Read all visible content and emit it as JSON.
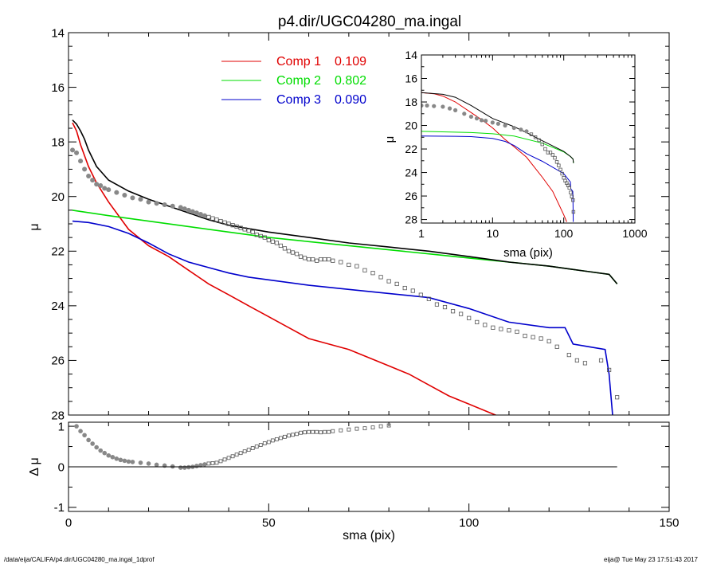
{
  "title": "p4.dir/UGC04280_ma.ingal",
  "footer": {
    "left": "/data/eija/CALIFA/p4.dir/UGC04280_ma.ingal_1dprof",
    "right": "eija@  Tue May 23 17:51:43 2017"
  },
  "colors": {
    "comp1": "#e00000",
    "comp2": "#00dd00",
    "comp3": "#0000cc",
    "total": "#000000",
    "data": "#888888"
  },
  "legend": [
    {
      "label": "Comp 1",
      "value": "0.109",
      "color": "#e00000"
    },
    {
      "label": "Comp 2",
      "value": "0.802",
      "color": "#00dd00"
    },
    {
      "label": "Comp 3",
      "value": "0.090",
      "color": "#0000cc"
    }
  ],
  "chart_data": [
    {
      "type": "line",
      "title": "p4.dir/UGC04280_ma.ingal",
      "xlabel": "",
      "ylabel": "μ",
      "xlim": [
        0,
        150
      ],
      "ylim": [
        28,
        14
      ],
      "y_inverted": true,
      "yticks": [
        "14",
        "16",
        "18",
        "20",
        "22",
        "24",
        "26",
        "28"
      ],
      "series": [
        {
          "name": "Comp 1 0.109",
          "color": "#e00000",
          "x": [
            1,
            2,
            3,
            5,
            7,
            10,
            15,
            20,
            25,
            30,
            35,
            40,
            45,
            50,
            55,
            60,
            65,
            70,
            75,
            80,
            85,
            90,
            95,
            100,
            105,
            110
          ],
          "y": [
            17.3,
            17.6,
            18.1,
            18.9,
            19.5,
            20.2,
            21.2,
            21.8,
            22.2,
            22.7,
            23.2,
            23.6,
            24.0,
            24.4,
            24.8,
            25.2,
            25.4,
            25.6,
            25.9,
            26.2,
            26.5,
            26.9,
            27.3,
            27.6,
            27.9,
            28.2
          ]
        },
        {
          "name": "Comp 2 0.802",
          "color": "#00dd00",
          "x": [
            1,
            10,
            20,
            30,
            40,
            50,
            60,
            70,
            80,
            90,
            100,
            110,
            120,
            125,
            130,
            135,
            137
          ],
          "y": [
            20.5,
            20.7,
            20.9,
            21.1,
            21.3,
            21.5,
            21.65,
            21.8,
            21.95,
            22.1,
            22.25,
            22.4,
            22.55,
            22.65,
            22.75,
            22.85,
            23.2
          ]
        },
        {
          "name": "Comp 3 0.090",
          "color": "#0000cc",
          "x": [
            1,
            5,
            10,
            15,
            20,
            25,
            30,
            35,
            40,
            45,
            50,
            60,
            70,
            80,
            90,
            100,
            110,
            120,
            124,
            126,
            130,
            134,
            135,
            136
          ],
          "y": [
            20.9,
            20.95,
            21.1,
            21.35,
            21.7,
            22.1,
            22.4,
            22.6,
            22.8,
            22.95,
            23.05,
            23.25,
            23.4,
            23.55,
            23.7,
            24.1,
            24.6,
            24.8,
            24.8,
            25.4,
            25.5,
            25.6,
            26.5,
            28.2
          ]
        },
        {
          "name": "",
          "color": "#000000",
          "x": [
            1,
            2,
            3,
            4,
            5,
            7,
            10,
            15,
            20,
            25,
            30,
            35,
            40,
            50,
            60,
            70,
            80,
            90,
            100,
            110,
            120,
            125,
            130,
            135,
            137
          ],
          "y": [
            17.2,
            17.35,
            17.6,
            17.9,
            18.3,
            18.9,
            19.4,
            19.8,
            20.1,
            20.35,
            20.6,
            20.85,
            21.05,
            21.3,
            21.5,
            21.7,
            21.85,
            22.0,
            22.2,
            22.4,
            22.55,
            22.65,
            22.75,
            22.85,
            23.2
          ]
        },
        {
          "name": "",
          "color": "#888888",
          "style": "points",
          "x": [
            1,
            2,
            3,
            4,
            5,
            6,
            7,
            8,
            9,
            10,
            12,
            14,
            16,
            18,
            20,
            22,
            24,
            26,
            28,
            29,
            30,
            31,
            32,
            33,
            34,
            35,
            36,
            37,
            38,
            39,
            40,
            41,
            42,
            43,
            44,
            45,
            46,
            47,
            48,
            49,
            50,
            51,
            52,
            53,
            54,
            55,
            56,
            57,
            58,
            59,
            60,
            61,
            62,
            63,
            64,
            65,
            66,
            68,
            70,
            72,
            74,
            76,
            78,
            80,
            82,
            84,
            86,
            88,
            90,
            92,
            94,
            96,
            98,
            100,
            102,
            104,
            106,
            108,
            110,
            112,
            114,
            116,
            118,
            120,
            122,
            125,
            127,
            129,
            133,
            135,
            137
          ],
          "y": [
            18.3,
            18.4,
            18.7,
            19.0,
            19.25,
            19.4,
            19.55,
            19.6,
            19.7,
            19.75,
            19.85,
            19.95,
            20.05,
            20.1,
            20.2,
            20.25,
            20.3,
            20.35,
            20.4,
            20.45,
            20.5,
            20.55,
            20.6,
            20.65,
            20.7,
            20.75,
            20.8,
            20.85,
            20.9,
            20.95,
            21.0,
            21.05,
            21.1,
            21.15,
            21.2,
            21.25,
            21.3,
            21.4,
            21.45,
            21.5,
            21.6,
            21.65,
            21.7,
            21.8,
            21.9,
            22.0,
            22.05,
            22.1,
            22.2,
            22.25,
            22.3,
            22.3,
            22.35,
            22.3,
            22.3,
            22.3,
            22.35,
            22.4,
            22.5,
            22.55,
            22.7,
            22.8,
            22.95,
            23.1,
            23.2,
            23.35,
            23.45,
            23.6,
            23.75,
            23.95,
            24.05,
            24.2,
            24.3,
            24.45,
            24.6,
            24.7,
            24.8,
            24.85,
            24.9,
            24.95,
            25.1,
            25.15,
            25.2,
            25.3,
            25.5,
            25.8,
            26.0,
            26.1,
            26.0,
            26.35,
            27.35
          ]
        }
      ]
    },
    {
      "type": "scatter",
      "title": "",
      "xlabel": "sma (pix)",
      "ylabel": "Δ μ",
      "xlim": [
        0,
        150
      ],
      "ylim": [
        -1.1,
        1.1
      ],
      "xticks": [
        "0",
        "50",
        "100",
        "150"
      ],
      "yticks": [
        "1",
        "0",
        "-1"
      ],
      "series": [
        {
          "name": "",
          "color": "#888888",
          "style": "points",
          "x": [
            2,
            3,
            4,
            5,
            6,
            7,
            8,
            9,
            10,
            11,
            12,
            13,
            14,
            15,
            16,
            18,
            20,
            22,
            24,
            26,
            28,
            29,
            30,
            31,
            32,
            33,
            34,
            35,
            36,
            37,
            38,
            39,
            40,
            41,
            42,
            43,
            44,
            45,
            46,
            47,
            48,
            49,
            50,
            51,
            52,
            53,
            54,
            55,
            56,
            57,
            58,
            59,
            60,
            61,
            62,
            63,
            64,
            65,
            66,
            68,
            70,
            72,
            74,
            76,
            78,
            80
          ],
          "y": [
            1.0,
            0.88,
            0.78,
            0.66,
            0.57,
            0.48,
            0.4,
            0.34,
            0.28,
            0.24,
            0.2,
            0.17,
            0.15,
            0.13,
            0.12,
            0.1,
            0.08,
            0.05,
            0.03,
            0.01,
            -0.02,
            -0.02,
            -0.01,
            0.0,
            0.02,
            0.04,
            0.06,
            0.08,
            0.09,
            0.1,
            0.14,
            0.18,
            0.22,
            0.26,
            0.3,
            0.34,
            0.38,
            0.42,
            0.46,
            0.5,
            0.54,
            0.58,
            0.61,
            0.65,
            0.68,
            0.71,
            0.74,
            0.77,
            0.79,
            0.81,
            0.84,
            0.85,
            0.86,
            0.86,
            0.86,
            0.85,
            0.86,
            0.86,
            0.88,
            0.9,
            0.92,
            0.94,
            0.95,
            0.97,
            1.0,
            1.02
          ]
        },
        {
          "name": "",
          "color": "#000000",
          "style": "line",
          "x": [
            0,
            137
          ],
          "y": [
            0,
            0
          ]
        }
      ]
    },
    {
      "type": "line",
      "title": "",
      "xlabel": "sma (pix)",
      "ylabel": "μ",
      "xscale": "log",
      "xlim": [
        1,
        1000
      ],
      "ylim": [
        28.3,
        14
      ],
      "y_inverted": true,
      "xticks": [
        "1",
        "10",
        "100",
        "1000"
      ],
      "yticks": [
        "14",
        "16",
        "18",
        "20",
        "22",
        "24",
        "26",
        "28"
      ],
      "series": [
        {
          "name": "",
          "color": "#e00000",
          "x": [
            1,
            1.5,
            2,
            3,
            5,
            7,
            10,
            15,
            20,
            30,
            50,
            70,
            100,
            110
          ],
          "y": [
            17.2,
            17.3,
            17.5,
            18.0,
            18.9,
            19.5,
            20.2,
            21.2,
            21.8,
            22.7,
            24.4,
            25.6,
            27.6,
            28.2
          ]
        },
        {
          "name": "",
          "color": "#00dd00",
          "x": [
            1,
            5,
            10,
            20,
            50,
            100,
            125,
            135,
            137
          ],
          "y": [
            20.5,
            20.6,
            20.7,
            20.9,
            21.5,
            22.25,
            22.65,
            22.85,
            23.2
          ]
        },
        {
          "name": "",
          "color": "#0000cc",
          "x": [
            1,
            3,
            5,
            10,
            15,
            20,
            30,
            50,
            100,
            124,
            126,
            134,
            135,
            136
          ],
          "y": [
            20.9,
            20.92,
            20.95,
            21.1,
            21.35,
            21.7,
            22.4,
            23.05,
            24.1,
            24.8,
            25.4,
            25.6,
            26.5,
            28.2
          ]
        },
        {
          "name": "",
          "color": "#000000",
          "x": [
            1,
            2,
            3,
            5,
            10,
            20,
            30,
            50,
            100,
            125,
            135,
            137
          ],
          "y": [
            17.2,
            17.35,
            17.6,
            18.3,
            19.4,
            20.1,
            20.6,
            21.3,
            22.2,
            22.65,
            22.85,
            23.2
          ]
        },
        {
          "name": "",
          "color": "#888888",
          "style": "points",
          "x": [
            1,
            1.2,
            1.5,
            2,
            2.5,
            3,
            4,
            5,
            6,
            7,
            8,
            10,
            12,
            15,
            20,
            25,
            30,
            35,
            40,
            45,
            50,
            55,
            60,
            65,
            70,
            75,
            80,
            85,
            90,
            95,
            100,
            105,
            110,
            115,
            120,
            125,
            130,
            135,
            137
          ],
          "y": [
            18.3,
            18.3,
            18.35,
            18.4,
            18.55,
            18.7,
            19.0,
            19.25,
            19.4,
            19.55,
            19.6,
            19.75,
            19.85,
            20.0,
            20.2,
            20.35,
            20.5,
            20.75,
            21.0,
            21.25,
            21.6,
            22.0,
            22.3,
            22.3,
            22.5,
            22.75,
            23.1,
            23.4,
            23.75,
            24.1,
            24.45,
            24.7,
            24.9,
            25.1,
            25.3,
            25.7,
            26.05,
            26.35,
            27.35
          ]
        }
      ]
    }
  ]
}
